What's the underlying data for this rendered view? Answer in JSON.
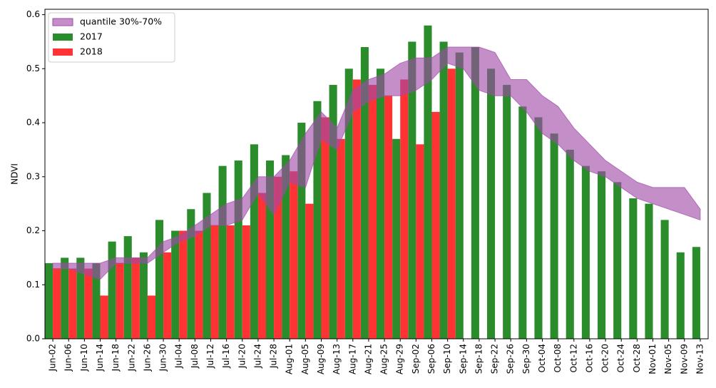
{
  "chart_data": {
    "type": "bar",
    "title": "",
    "xlabel": "",
    "ylabel": "NDVI",
    "ylim": [
      0,
      0.61
    ],
    "yticks": [
      "0.0",
      "0.1",
      "0.2",
      "0.3",
      "0.4",
      "0.5",
      "0.6"
    ],
    "grid": false,
    "legend_position": "top-left",
    "categories": [
      "Jun-02",
      "Jun-06",
      "Jun-10",
      "Jun-14",
      "Jun-18",
      "Jun-22",
      "Jun-26",
      "Jun-30",
      "Jul-04",
      "Jul-08",
      "Jul-12",
      "Jul-16",
      "Jul-20",
      "Jul-24",
      "Jul-28",
      "Aug-01",
      "Aug-05",
      "Aug-09",
      "Aug-13",
      "Aug-17",
      "Aug-21",
      "Aug-25",
      "Aug-29",
      "Sep-02",
      "Sep-06",
      "Sep-10",
      "Sep-14",
      "Sep-18",
      "Sep-22",
      "Sep-26",
      "Sep-30",
      "Oct-04",
      "Oct-08",
      "Oct-12",
      "Oct-16",
      "Oct-20",
      "Oct-24",
      "Oct-28",
      "Nov-01",
      "Nov-05",
      "Nov-09",
      "Nov-13"
    ],
    "series": [
      {
        "name": "2017",
        "color": "#2a8c2a",
        "values": [
          0.14,
          0.15,
          0.15,
          0.14,
          0.18,
          0.19,
          0.16,
          0.22,
          0.2,
          0.24,
          0.27,
          0.32,
          0.33,
          0.36,
          0.33,
          0.34,
          0.4,
          0.44,
          0.47,
          0.5,
          0.54,
          0.5,
          0.37,
          0.55,
          0.58,
          0.55,
          0.53,
          0.54,
          0.5,
          0.47,
          0.43,
          0.41,
          0.38,
          0.35,
          0.32,
          0.31,
          0.29,
          0.26,
          0.25,
          0.22,
          0.16,
          0.17
        ]
      },
      {
        "name": "2018",
        "color": "#ff3333",
        "values": [
          0.13,
          0.13,
          0.13,
          0.08,
          0.14,
          0.15,
          0.08,
          0.16,
          0.2,
          0.2,
          0.21,
          0.21,
          0.21,
          0.27,
          0.3,
          0.31,
          0.25,
          0.41,
          0.37,
          0.48,
          0.47,
          0.45,
          0.48,
          0.36,
          0.42,
          0.5,
          null,
          null,
          null,
          null,
          null,
          null,
          null,
          null,
          null,
          null,
          null,
          null,
          null,
          null,
          null,
          null
        ]
      }
    ],
    "band": {
      "name": "quantile 30%-70%",
      "color": "#a04aa8",
      "lower": [
        0.13,
        0.13,
        0.12,
        0.11,
        0.14,
        0.14,
        0.14,
        0.16,
        0.18,
        0.19,
        0.21,
        0.21,
        0.22,
        0.27,
        0.23,
        0.29,
        0.28,
        0.37,
        0.35,
        0.42,
        0.44,
        0.45,
        0.45,
        0.46,
        0.48,
        0.51,
        0.5,
        0.46,
        0.45,
        0.45,
        0.42,
        0.38,
        0.36,
        0.33,
        0.31,
        0.3,
        0.28,
        0.26,
        0.25,
        0.24,
        0.23,
        0.22
      ],
      "upper": [
        0.14,
        0.14,
        0.14,
        0.14,
        0.15,
        0.15,
        0.15,
        0.18,
        0.19,
        0.21,
        0.23,
        0.25,
        0.26,
        0.3,
        0.3,
        0.33,
        0.38,
        0.42,
        0.39,
        0.46,
        0.48,
        0.49,
        0.51,
        0.52,
        0.52,
        0.54,
        0.54,
        0.54,
        0.53,
        0.48,
        0.48,
        0.45,
        0.43,
        0.39,
        0.36,
        0.33,
        0.31,
        0.29,
        0.28,
        0.28,
        0.28,
        0.24
      ]
    }
  }
}
